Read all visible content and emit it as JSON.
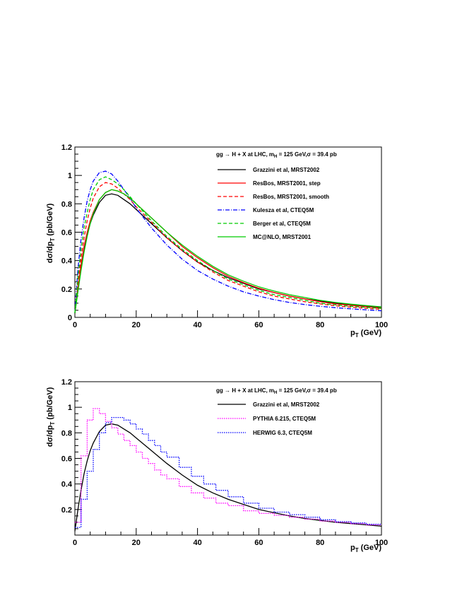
{
  "chart_data": [
    {
      "type": "line",
      "legend_title": "gg → H + X at LHC, m_H = 125 GeV, σ = 39.4 pb",
      "xlabel": "p_T (GeV)",
      "ylabel": "dσ/dp_T (pb/GeV)",
      "xlim": [
        0,
        100
      ],
      "ylim": [
        0,
        1.2
      ],
      "x_ticks": [
        "0",
        "20",
        "40",
        "60",
        "80",
        "100"
      ],
      "y_ticks": [
        "0",
        "0.2",
        "0.4",
        "0.6",
        "0.8",
        "1",
        "1.2"
      ],
      "legend_position": "top-right",
      "grid": false,
      "series": [
        {
          "name": "Grazzini et al, MRST2002",
          "color": "#000000",
          "dash": "solid",
          "x": [
            0,
            1,
            2,
            3,
            4,
            5,
            6,
            8,
            10,
            12,
            14,
            16,
            18,
            20,
            25,
            30,
            35,
            40,
            45,
            50,
            55,
            60,
            65,
            70,
            75,
            80,
            85,
            90,
            95,
            100
          ],
          "y": [
            0.03,
            0.2,
            0.35,
            0.48,
            0.58,
            0.66,
            0.72,
            0.81,
            0.86,
            0.87,
            0.86,
            0.83,
            0.8,
            0.76,
            0.66,
            0.56,
            0.47,
            0.39,
            0.33,
            0.28,
            0.24,
            0.2,
            0.175,
            0.15,
            0.13,
            0.115,
            0.1,
            0.09,
            0.08,
            0.07
          ]
        },
        {
          "name": "ResBos, MRST2001, step",
          "color": "#ff0000",
          "dash": "solid",
          "x": [
            0,
            1,
            2,
            3,
            4,
            5,
            6,
            8,
            10,
            12,
            14,
            16,
            18,
            20,
            25,
            30,
            35,
            40,
            45,
            50,
            55,
            60,
            65,
            70,
            75,
            80,
            85,
            90,
            95,
            100
          ],
          "y": [
            0.03,
            0.21,
            0.37,
            0.5,
            0.6,
            0.68,
            0.74,
            0.83,
            0.88,
            0.9,
            0.89,
            0.87,
            0.84,
            0.8,
            0.7,
            0.6,
            0.5,
            0.42,
            0.35,
            0.29,
            0.245,
            0.205,
            0.175,
            0.15,
            0.13,
            0.11,
            0.095,
            0.085,
            0.075,
            0.065
          ]
        },
        {
          "name": "ResBos, MRST2001, smooth",
          "color": "#ff0000",
          "dash": "5,3",
          "x": [
            0,
            1,
            2,
            3,
            4,
            5,
            6,
            8,
            10,
            12,
            14,
            16,
            18,
            20,
            25,
            30,
            35,
            40,
            45,
            50,
            55,
            60,
            65,
            70,
            75,
            80,
            85,
            90,
            95,
            100
          ],
          "y": [
            0.03,
            0.24,
            0.42,
            0.56,
            0.68,
            0.77,
            0.84,
            0.92,
            0.95,
            0.94,
            0.91,
            0.87,
            0.83,
            0.78,
            0.67,
            0.56,
            0.47,
            0.39,
            0.32,
            0.26,
            0.22,
            0.18,
            0.15,
            0.13,
            0.11,
            0.095,
            0.082,
            0.072,
            0.064,
            0.057
          ]
        },
        {
          "name": "Kulesza et al, CTEQ5M",
          "color": "#0000ff",
          "dash": "6,2,1,2",
          "x": [
            0,
            1,
            2,
            3,
            4,
            5,
            6,
            8,
            10,
            12,
            14,
            16,
            18,
            20,
            25,
            30,
            35,
            40,
            45,
            50,
            55,
            60,
            65,
            70,
            75,
            80,
            85,
            90,
            95,
            100
          ],
          "y": [
            0.03,
            0.34,
            0.55,
            0.7,
            0.82,
            0.9,
            0.96,
            1.02,
            1.03,
            1.01,
            0.96,
            0.9,
            0.84,
            0.77,
            0.63,
            0.51,
            0.41,
            0.33,
            0.27,
            0.22,
            0.18,
            0.15,
            0.125,
            0.105,
            0.09,
            0.078,
            0.068,
            0.06,
            0.053,
            0.047
          ]
        },
        {
          "name": "Berger et al, CTEQ5M",
          "color": "#00cc00",
          "dash": "5,3",
          "x": [
            0,
            1,
            2,
            3,
            4,
            5,
            6,
            8,
            10,
            12,
            14,
            16,
            18,
            20,
            25,
            30,
            35,
            40,
            45,
            50,
            55,
            60,
            65,
            70,
            75,
            80,
            85,
            90,
            95,
            100
          ],
          "y": [
            0.03,
            0.28,
            0.48,
            0.63,
            0.74,
            0.83,
            0.9,
            0.97,
            0.99,
            0.97,
            0.94,
            0.9,
            0.85,
            0.8,
            0.68,
            0.57,
            0.48,
            0.4,
            0.33,
            0.27,
            0.23,
            0.19,
            0.16,
            0.14,
            0.12,
            0.1,
            0.088,
            0.078,
            0.07,
            0.063
          ]
        },
        {
          "name": "MC@NLO, MRST2001",
          "color": "#00cc00",
          "dash": "solid",
          "x": [
            0,
            1,
            2,
            3,
            4,
            5,
            6,
            8,
            10,
            12,
            14,
            16,
            18,
            20,
            25,
            30,
            35,
            40,
            45,
            50,
            55,
            60,
            65,
            70,
            75,
            80,
            85,
            90,
            95,
            100
          ],
          "y": [
            0.03,
            0.18,
            0.33,
            0.46,
            0.57,
            0.66,
            0.73,
            0.83,
            0.88,
            0.9,
            0.89,
            0.87,
            0.84,
            0.8,
            0.7,
            0.6,
            0.51,
            0.43,
            0.36,
            0.3,
            0.255,
            0.215,
            0.185,
            0.16,
            0.14,
            0.12,
            0.105,
            0.093,
            0.083,
            0.074
          ]
        }
      ]
    },
    {
      "type": "line",
      "legend_title": "gg → H + X at LHC, m_H = 125 GeV, σ = 39.4 pb",
      "xlabel": "p_T (GeV)",
      "ylabel": "dσ/dp_T (pb/GeV)",
      "xlim": [
        0,
        100
      ],
      "ylim": [
        0,
        1.2
      ],
      "x_ticks": [
        "0",
        "20",
        "40",
        "60",
        "80",
        "100"
      ],
      "y_ticks": [
        "0.2",
        "0.4",
        "0.6",
        "0.8",
        "1",
        "1.2"
      ],
      "legend_position": "top-right",
      "grid": false,
      "series": [
        {
          "name": "Grazzini et al, MRST2002",
          "color": "#000000",
          "dash": "solid",
          "step": false,
          "x": [
            0,
            1,
            2,
            3,
            4,
            5,
            6,
            8,
            10,
            12,
            14,
            16,
            18,
            20,
            25,
            30,
            35,
            40,
            45,
            50,
            55,
            60,
            65,
            70,
            75,
            80,
            85,
            90,
            95,
            100
          ],
          "y": [
            0.03,
            0.2,
            0.35,
            0.48,
            0.58,
            0.66,
            0.72,
            0.81,
            0.86,
            0.87,
            0.86,
            0.83,
            0.8,
            0.76,
            0.66,
            0.56,
            0.47,
            0.39,
            0.33,
            0.28,
            0.24,
            0.2,
            0.175,
            0.15,
            0.13,
            0.115,
            0.1,
            0.09,
            0.08,
            0.07
          ]
        },
        {
          "name": "PYTHIA 6.215, CTEQ5M",
          "color": "#ff00ff",
          "dash": "1.5,1.5",
          "step": true,
          "x": [
            0,
            2,
            4,
            6,
            8,
            10,
            12,
            14,
            16,
            18,
            20,
            22,
            24,
            26,
            28,
            30,
            34,
            38,
            42,
            46,
            50,
            55,
            60,
            65,
            70,
            75,
            80,
            85,
            90,
            95,
            100
          ],
          "y": [
            0.1,
            0.62,
            0.9,
            0.99,
            0.95,
            0.89,
            0.84,
            0.79,
            0.74,
            0.7,
            0.65,
            0.6,
            0.56,
            0.51,
            0.47,
            0.44,
            0.38,
            0.33,
            0.29,
            0.25,
            0.23,
            0.19,
            0.17,
            0.155,
            0.14,
            0.125,
            0.11,
            0.1,
            0.09,
            0.08,
            0.07
          ]
        },
        {
          "name": "HERWIG 6.3, CTEQ5M",
          "color": "#0000ff",
          "dash": "1.5,1.5",
          "step": true,
          "x": [
            0,
            2,
            4,
            6,
            8,
            10,
            12,
            14,
            16,
            18,
            20,
            22,
            24,
            26,
            28,
            30,
            34,
            38,
            42,
            46,
            50,
            55,
            60,
            65,
            70,
            75,
            80,
            85,
            90,
            95,
            100
          ],
          "y": [
            0.06,
            0.28,
            0.5,
            0.67,
            0.8,
            0.88,
            0.92,
            0.92,
            0.9,
            0.87,
            0.83,
            0.79,
            0.74,
            0.7,
            0.65,
            0.61,
            0.53,
            0.46,
            0.4,
            0.35,
            0.3,
            0.25,
            0.21,
            0.18,
            0.16,
            0.14,
            0.12,
            0.105,
            0.095,
            0.085,
            0.075
          ]
        }
      ]
    }
  ]
}
